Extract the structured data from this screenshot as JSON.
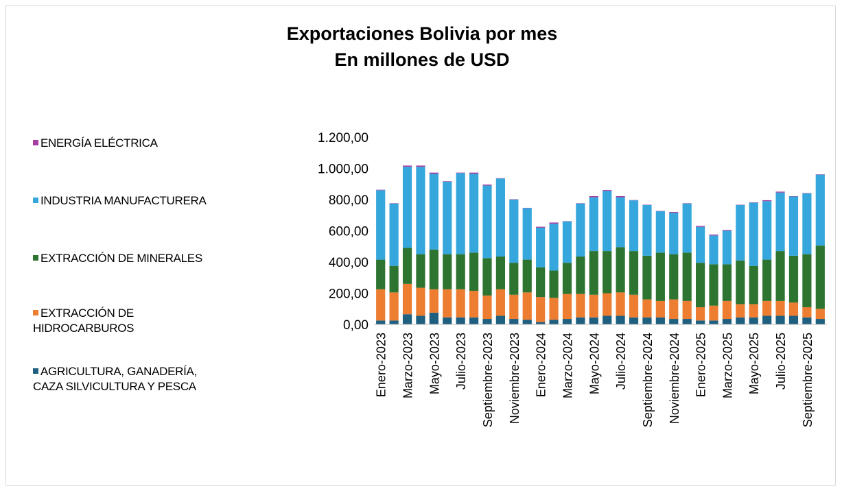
{
  "chart_data": {
    "type": "stacked_bar",
    "title": "Exportaciones Bolivia por mes",
    "subtitle": "En millones de USD",
    "categories": [
      "Enero-2023",
      null,
      "Marzo-2023",
      null,
      "Mayo-2023",
      null,
      "Julio-2023",
      null,
      "Septiembre-2023",
      null,
      "Noviembre-2023",
      null,
      "Enero-2024",
      null,
      "Marzo-2024",
      null,
      "Mayo-2024",
      null,
      "Julio-2024",
      null,
      "Septiembre-2024",
      null,
      "Noviembre-2024",
      null,
      "Enero-2025",
      null,
      "Marzo-2025",
      null,
      "Mayo-2025",
      null,
      "Julio-2025",
      null,
      "Septiembre-2025",
      null
    ],
    "series": [
      {
        "name": "AGRICULTURA, GANADERÍA,\nCAZA SILVICULTURA Y PESCA",
        "color": "#1f5f7f",
        "values": [
          25,
          25,
          65,
          55,
          75,
          45,
          45,
          45,
          35,
          55,
          35,
          30,
          15,
          30,
          35,
          45,
          45,
          55,
          55,
          45,
          45,
          45,
          35,
          35,
          25,
          25,
          35,
          45,
          45,
          55,
          55,
          55,
          45,
          35
        ]
      },
      {
        "name": "EXTRACCIÓN DE\nHIDROCARBUROS",
        "color": "#ed7d31",
        "values": [
          200,
          180,
          195,
          180,
          150,
          180,
          180,
          170,
          150,
          170,
          155,
          175,
          160,
          140,
          160,
          150,
          145,
          145,
          150,
          145,
          115,
          105,
          125,
          115,
          85,
          95,
          115,
          85,
          85,
          95,
          95,
          85,
          65,
          65
        ]
      },
      {
        "name": "EXTRACCIÓN  DE MINERALES",
        "color": "#2e7431",
        "values": [
          190,
          170,
          230,
          215,
          255,
          225,
          225,
          245,
          240,
          210,
          205,
          210,
          190,
          175,
          200,
          240,
          280,
          270,
          290,
          280,
          280,
          310,
          290,
          310,
          285,
          265,
          235,
          280,
          245,
          265,
          320,
          300,
          340,
          405
        ]
      },
      {
        "name": "INDUSTRIA MANUFACTURERA",
        "color": "#35a7dd",
        "values": [
          445,
          400,
          520,
          560,
          485,
          465,
          520,
          505,
          465,
          500,
          405,
          330,
          255,
          300,
          265,
          340,
          345,
          385,
          320,
          325,
          325,
          265,
          265,
          315,
          230,
          185,
          215,
          355,
          405,
          375,
          375,
          380,
          390,
          455
        ]
      },
      {
        "name": "ENERGÍA ELÉCTRICA",
        "color": "#a43fa3",
        "values": [
          3,
          2,
          8,
          8,
          8,
          3,
          3,
          8,
          6,
          2,
          2,
          2,
          6,
          8,
          2,
          2,
          7,
          6,
          7,
          2,
          2,
          2,
          6,
          2,
          6,
          6,
          5,
          2,
          2,
          6,
          6,
          2,
          2,
          2
        ]
      }
    ],
    "ylim": [
      0,
      1200
    ],
    "yticks": [
      {
        "value": 0,
        "label": "0,00"
      },
      {
        "value": 200,
        "label": "200,00"
      },
      {
        "value": 400,
        "label": "400,00"
      },
      {
        "value": 600,
        "label": "600,00"
      },
      {
        "value": 800,
        "label": "800,00"
      },
      {
        "value": 1000,
        "label": "1.000,00"
      },
      {
        "value": 1200,
        "label": "1.200,00"
      }
    ],
    "grid": false,
    "legend": "left"
  }
}
